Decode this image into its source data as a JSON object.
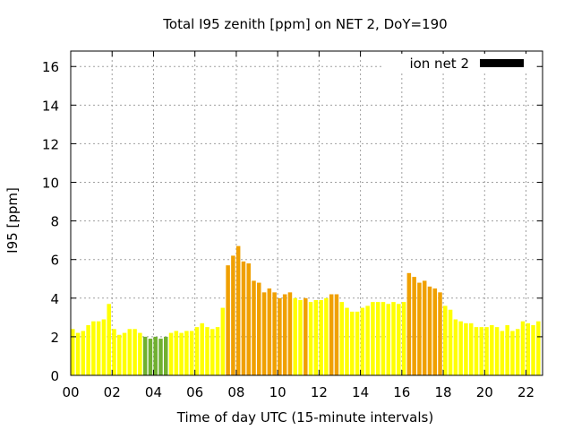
{
  "chart_data": {
    "type": "bar",
    "title": "Total I95 zenith [ppm] on NET 2, DoY=190",
    "xlabel": "Time of day UTC (15-minute intervals)",
    "ylabel": "I95 [ppm]",
    "legend": {
      "label": "ion net 2",
      "position": "top-right",
      "swatch_color": "#000000"
    },
    "ylim": [
      0,
      16.8
    ],
    "xlim": [
      0,
      22.8
    ],
    "grid": true,
    "x_ticks": [
      0,
      2,
      4,
      6,
      8,
      10,
      12,
      14,
      16,
      18,
      20,
      22
    ],
    "x_tick_labels": [
      "00",
      "02",
      "04",
      "06",
      "08",
      "10",
      "12",
      "14",
      "16",
      "18",
      "20",
      "22"
    ],
    "y_ticks": [
      0,
      2,
      4,
      6,
      8,
      10,
      12,
      14,
      16
    ],
    "y_tick_labels": [
      "0",
      "2",
      "4",
      "6",
      "8",
      "10",
      "12",
      "14",
      "16"
    ],
    "colors": {
      "yellow": "#ffff00",
      "orange": "#f0a000",
      "green": "#70b030"
    },
    "x": [
      0.0,
      0.25,
      0.5,
      0.75,
      1.0,
      1.25,
      1.5,
      1.75,
      2.0,
      2.25,
      2.5,
      2.75,
      3.0,
      3.25,
      3.5,
      3.75,
      4.0,
      4.25,
      4.5,
      4.75,
      5.0,
      5.25,
      5.5,
      5.75,
      6.0,
      6.25,
      6.5,
      6.75,
      7.0,
      7.25,
      7.5,
      7.75,
      8.0,
      8.25,
      8.5,
      8.75,
      9.0,
      9.25,
      9.5,
      9.75,
      10.0,
      10.25,
      10.5,
      10.75,
      11.0,
      11.25,
      11.5,
      11.75,
      12.0,
      12.25,
      12.5,
      12.75,
      13.0,
      13.25,
      13.5,
      13.75,
      14.0,
      14.25,
      14.5,
      14.75,
      15.0,
      15.25,
      15.5,
      15.75,
      16.0,
      16.25,
      16.5,
      16.75,
      17.0,
      17.25,
      17.5,
      17.75,
      18.0,
      18.25,
      18.5,
      18.75,
      19.0,
      19.25,
      19.5,
      19.75,
      20.0,
      20.25,
      20.5,
      20.75,
      21.0,
      21.25,
      21.5,
      21.75,
      22.0,
      22.25,
      22.5
    ],
    "values": [
      2.4,
      2.2,
      2.3,
      2.6,
      2.8,
      2.8,
      2.9,
      3.7,
      2.4,
      2.1,
      2.2,
      2.4,
      2.4,
      2.2,
      2.0,
      1.9,
      2.0,
      1.9,
      2.0,
      2.2,
      2.3,
      2.2,
      2.3,
      2.3,
      2.5,
      2.7,
      2.5,
      2.4,
      2.5,
      3.5,
      5.7,
      6.2,
      6.7,
      5.9,
      5.8,
      4.9,
      4.8,
      4.3,
      4.5,
      4.3,
      4.0,
      4.2,
      4.3,
      4.0,
      3.9,
      4.0,
      3.8,
      3.9,
      3.9,
      4.0,
      4.2,
      4.2,
      3.8,
      3.5,
      3.3,
      3.3,
      3.5,
      3.6,
      3.8,
      3.8,
      3.8,
      3.7,
      3.8,
      3.7,
      3.8,
      5.3,
      5.1,
      4.8,
      4.9,
      4.6,
      4.5,
      4.3,
      3.6,
      3.4,
      2.9,
      2.8,
      2.7,
      2.7,
      2.5,
      2.5,
      2.5,
      2.6,
      2.5,
      2.3,
      2.6,
      2.3,
      2.4,
      2.8,
      2.7,
      2.6,
      2.8
    ],
    "bar_colors": [
      "yellow",
      "yellow",
      "yellow",
      "yellow",
      "yellow",
      "yellow",
      "yellow",
      "yellow",
      "yellow",
      "yellow",
      "yellow",
      "yellow",
      "yellow",
      "yellow",
      "green",
      "green",
      "green",
      "green",
      "green",
      "yellow",
      "yellow",
      "yellow",
      "yellow",
      "yellow",
      "yellow",
      "yellow",
      "yellow",
      "yellow",
      "yellow",
      "yellow",
      "orange",
      "orange",
      "orange",
      "orange",
      "orange",
      "orange",
      "orange",
      "orange",
      "orange",
      "orange",
      "orange",
      "orange",
      "orange",
      "yellow",
      "yellow",
      "orange",
      "yellow",
      "yellow",
      "yellow",
      "yellow",
      "orange",
      "orange",
      "yellow",
      "yellow",
      "yellow",
      "yellow",
      "yellow",
      "yellow",
      "yellow",
      "yellow",
      "yellow",
      "yellow",
      "yellow",
      "yellow",
      "yellow",
      "orange",
      "orange",
      "orange",
      "orange",
      "orange",
      "orange",
      "orange",
      "yellow",
      "yellow",
      "yellow",
      "yellow",
      "yellow",
      "yellow",
      "yellow",
      "yellow",
      "yellow",
      "yellow",
      "yellow",
      "yellow",
      "yellow",
      "yellow",
      "yellow",
      "yellow",
      "yellow",
      "yellow",
      "yellow"
    ]
  }
}
